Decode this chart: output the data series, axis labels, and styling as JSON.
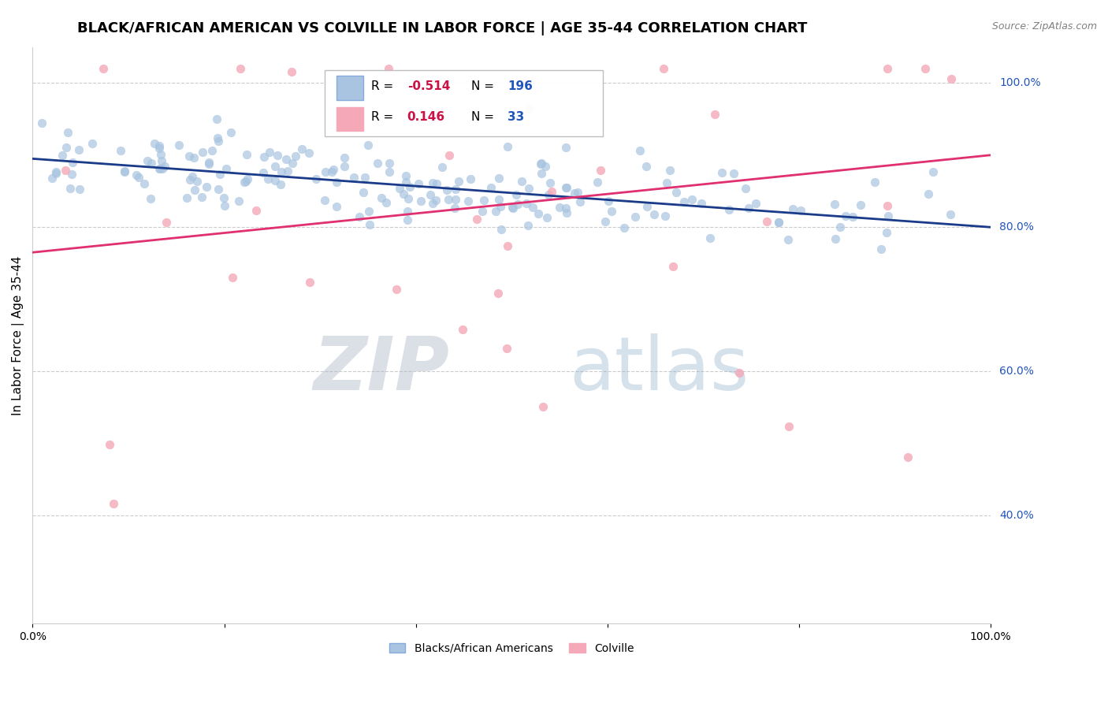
{
  "title": "BLACK/AFRICAN AMERICAN VS COLVILLE IN LABOR FORCE | AGE 35-44 CORRELATION CHART",
  "source": "Source: ZipAtlas.com",
  "ylabel": "In Labor Force | Age 35-44",
  "xlim": [
    0.0,
    1.0
  ],
  "ylim": [
    0.25,
    1.05
  ],
  "yticks": [
    0.4,
    0.6,
    0.8,
    1.0
  ],
  "ytick_labels": [
    "40.0%",
    "60.0%",
    "80.0%",
    "100.0%"
  ],
  "xticks": [
    0.0,
    0.2,
    0.4,
    0.6,
    0.8,
    1.0
  ],
  "xtick_labels": [
    "0.0%",
    "",
    "",
    "",
    "",
    "100.0%"
  ],
  "blue_N": 196,
  "pink_N": 33,
  "blue_color": "#a8c4e0",
  "pink_color": "#f4a8b8",
  "blue_line_color": "#1a3a8a",
  "pink_line_color": "#e03070",
  "legend_blue_label": "Blacks/African Americans",
  "legend_pink_label": "Colville",
  "watermark_zip": "ZIP",
  "watermark_atlas": "atlas",
  "blue_scatter_seed": 42,
  "pink_scatter_seed": 7,
  "blue_trend_y0": 0.895,
  "blue_trend_y1": 0.8,
  "pink_trend_y0": 0.765,
  "pink_trend_y1": 0.9,
  "background_color": "#ffffff",
  "grid_color": "#cccccc",
  "title_fontsize": 13,
  "axis_label_fontsize": 11,
  "tick_fontsize": 10,
  "marker_size": 60,
  "blue_noise_std": 0.028,
  "pink_noise_std": 0.16,
  "legend_R_blue": "-0.514",
  "legend_N_blue": "196",
  "legend_R_pink": "0.146",
  "legend_N_pink": "33"
}
